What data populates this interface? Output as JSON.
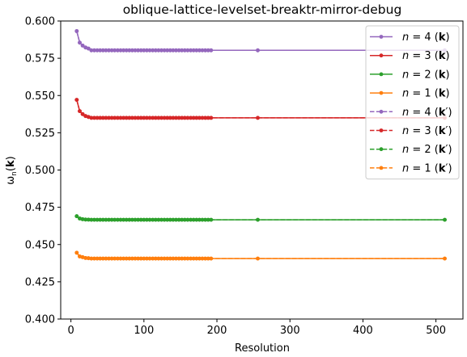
{
  "chart_data": {
    "type": "line",
    "title": "oblique-lattice-levelset-breaktr-mirror-debug",
    "xlabel": "Resolution",
    "ylabel": "ω_n(k)",
    "xlim": [
      -14,
      537
    ],
    "ylim": [
      0.4,
      0.6
    ],
    "x_ticks": [
      0,
      100,
      200,
      300,
      400,
      500
    ],
    "y_ticks": [
      0.4,
      0.425,
      0.45,
      0.475,
      0.5,
      0.525,
      0.55,
      0.575,
      0.6
    ],
    "x_tick_labels": [
      "0",
      "100",
      "200",
      "300",
      "400",
      "500"
    ],
    "y_tick_labels": [
      "0.400",
      "0.425",
      "0.450",
      "0.475",
      "0.500",
      "0.525",
      "0.550",
      "0.575",
      "0.600"
    ],
    "grid": false,
    "legend_position": "top-right",
    "series": [
      {
        "name": "n = 4 (k)",
        "n": "4",
        "kp": false,
        "color": "#9467bd",
        "style": "solid",
        "start": [
          0.5932,
          0.5855,
          0.5835,
          0.5822,
          0.5815
        ],
        "final": 0.5803
      },
      {
        "name": "n = 3 (k)",
        "n": "3",
        "kp": false,
        "color": "#d62728",
        "style": "solid",
        "start": [
          0.5471,
          0.5395,
          0.5375,
          0.5362,
          0.5356
        ],
        "final": 0.535
      },
      {
        "name": "n = 2 (k)",
        "n": "2",
        "kp": false,
        "color": "#2ca02c",
        "style": "solid",
        "start": [
          0.469,
          0.4675,
          0.467,
          0.4668,
          0.4667
        ],
        "final": 0.4666
      },
      {
        "name": "n = 1 (k)",
        "n": "1",
        "kp": false,
        "color": "#ff7f0e",
        "style": "solid",
        "start": [
          0.4445,
          0.442,
          0.4415,
          0.441,
          0.4408
        ],
        "final": 0.4406
      },
      {
        "name": "n = 4 (k′)",
        "n": "4",
        "kp": true,
        "color": "#9467bd",
        "style": "dashed",
        "start": [
          0.5932,
          0.5855,
          0.5835,
          0.5822,
          0.5815
        ],
        "final": 0.5803
      },
      {
        "name": "n = 3 (k′)",
        "n": "3",
        "kp": true,
        "color": "#d62728",
        "style": "dashed",
        "start": [
          0.5471,
          0.5395,
          0.5375,
          0.5362,
          0.5356
        ],
        "final": 0.535
      },
      {
        "name": "n = 2 (k′)",
        "n": "2",
        "kp": true,
        "color": "#2ca02c",
        "style": "dashed",
        "start": [
          0.469,
          0.4675,
          0.467,
          0.4668,
          0.4667
        ],
        "final": 0.4666
      },
      {
        "name": "n = 1 (k′)",
        "n": "1",
        "kp": true,
        "color": "#ff7f0e",
        "style": "dashed",
        "start": [
          0.4445,
          0.442,
          0.4415,
          0.441,
          0.4408
        ],
        "final": 0.4406
      }
    ],
    "x": [
      8,
      12,
      16,
      20,
      24,
      28,
      32,
      36,
      40,
      44,
      48,
      52,
      56,
      60,
      64,
      68,
      72,
      76,
      80,
      84,
      88,
      92,
      96,
      100,
      104,
      108,
      112,
      116,
      120,
      124,
      128,
      132,
      136,
      140,
      144,
      148,
      152,
      156,
      160,
      164,
      168,
      172,
      176,
      180,
      184,
      188,
      192,
      256,
      512
    ]
  }
}
